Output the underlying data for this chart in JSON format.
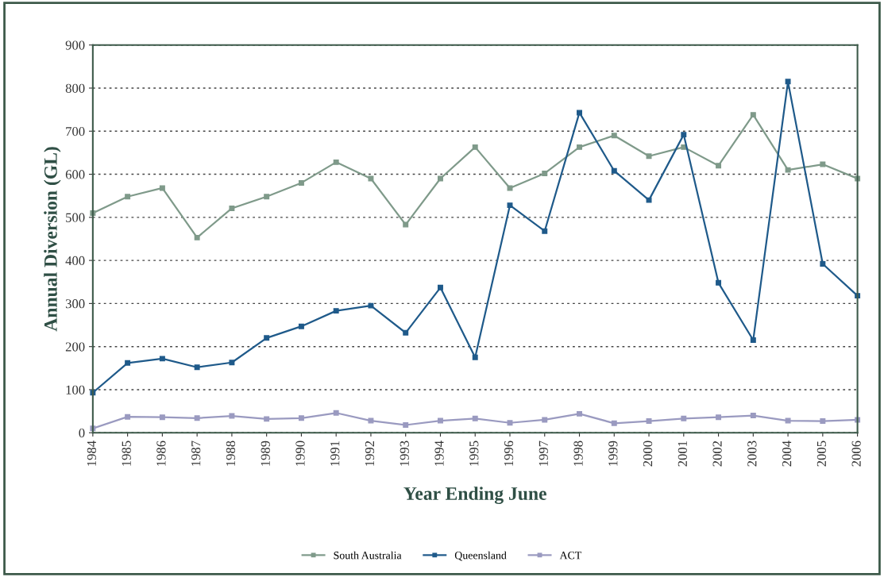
{
  "chart_data": {
    "type": "line",
    "xlabel": "Year Ending June",
    "ylabel": "Annual Diversion (GL)",
    "categories": [
      "1984",
      "1985",
      "1986",
      "1987",
      "1988",
      "1989",
      "1990",
      "1991",
      "1992",
      "1993",
      "1994",
      "1995",
      "1996",
      "1997",
      "1998",
      "1999",
      "2000",
      "2001",
      "2002",
      "2003",
      "2004",
      "2005",
      "2006"
    ],
    "series": [
      {
        "name": "South Australia",
        "color": "#7f9a8a",
        "values": [
          510,
          548,
          568,
          453,
          521,
          548,
          580,
          628,
          590,
          483,
          590,
          663,
          568,
          602,
          663,
          690,
          642,
          663,
          620,
          738,
          610,
          623,
          590
        ]
      },
      {
        "name": "Queensland",
        "color": "#1f5a8a",
        "values": [
          93,
          162,
          172,
          152,
          163,
          220,
          247,
          283,
          295,
          232,
          337,
          175,
          528,
          468,
          743,
          608,
          540,
          692,
          348,
          215,
          815,
          392,
          318
        ]
      },
      {
        "name": "ACT",
        "color": "#9a9ac0",
        "values": [
          10,
          37,
          36,
          34,
          39,
          32,
          34,
          46,
          28,
          18,
          28,
          33,
          23,
          30,
          44,
          22,
          27,
          33,
          36,
          40,
          28,
          27,
          30
        ]
      }
    ],
    "ylim": [
      0,
      900
    ],
    "yticks": [
      0,
      100,
      200,
      300,
      400,
      500,
      600,
      700,
      800,
      900
    ],
    "grid": "y",
    "legend": "bottom",
    "marker": "square",
    "line_style": "solid"
  }
}
